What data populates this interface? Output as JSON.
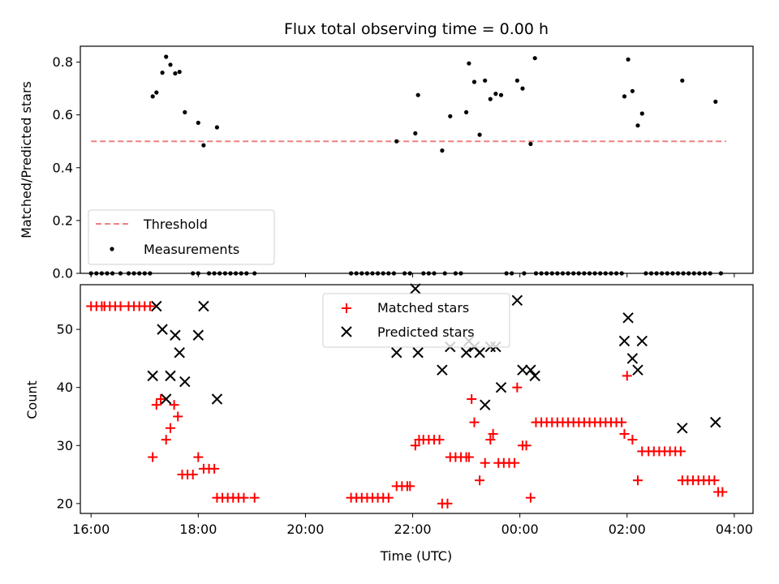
{
  "chart_data": [
    {
      "type": "scatter",
      "title": "Flux total observing time = 0.00 h",
      "xlabel": "",
      "ylabel": "Matched/Predicted stars",
      "xlim": [
        15.8,
        28.35
      ],
      "ylim": [
        0.0,
        0.86
      ],
      "yticks": [
        "0.0",
        "0.2",
        "0.4",
        "0.6",
        "0.8"
      ],
      "legend_position": "lower-left",
      "threshold": {
        "name": "Threshold",
        "y": 0.5,
        "x_range": [
          16.0,
          27.85
        ],
        "color": "#f08080",
        "style": "dashed"
      },
      "series": [
        {
          "name": "Measurements",
          "color": "#000000",
          "points": [
            [
              17.15,
              0.67
            ],
            [
              17.22,
              0.685
            ],
            [
              17.33,
              0.76
            ],
            [
              17.4,
              0.82
            ],
            [
              17.48,
              0.79
            ],
            [
              17.57,
              0.757
            ],
            [
              17.65,
              0.763
            ],
            [
              17.75,
              0.61
            ],
            [
              18.0,
              0.57
            ],
            [
              18.1,
              0.485
            ],
            [
              18.35,
              0.553
            ],
            [
              21.7,
              0.5
            ],
            [
              22.05,
              0.53
            ],
            [
              22.1,
              0.675
            ],
            [
              22.55,
              0.465
            ],
            [
              22.7,
              0.595
            ],
            [
              23.0,
              0.61
            ],
            [
              23.05,
              0.795
            ],
            [
              23.15,
              0.725
            ],
            [
              23.25,
              0.525
            ],
            [
              23.35,
              0.73
            ],
            [
              23.45,
              0.66
            ],
            [
              23.55,
              0.68
            ],
            [
              23.65,
              0.675
            ],
            [
              23.95,
              0.73
            ],
            [
              24.05,
              0.7
            ],
            [
              24.2,
              0.49
            ],
            [
              24.28,
              0.815
            ],
            [
              25.95,
              0.67
            ],
            [
              26.02,
              0.81
            ],
            [
              26.1,
              0.69
            ],
            [
              26.2,
              0.56
            ],
            [
              26.28,
              0.605
            ],
            [
              27.03,
              0.73
            ],
            [
              27.65,
              0.65
            ],
            [
              16.0,
              0
            ],
            [
              16.1,
              0
            ],
            [
              16.2,
              0
            ],
            [
              16.3,
              0
            ],
            [
              16.4,
              0
            ],
            [
              16.55,
              0
            ],
            [
              16.7,
              0
            ],
            [
              16.8,
              0
            ],
            [
              16.9,
              0
            ],
            [
              17.0,
              0
            ],
            [
              17.1,
              0
            ],
            [
              17.9,
              0
            ],
            [
              18.0,
              0
            ],
            [
              18.2,
              0
            ],
            [
              18.3,
              0
            ],
            [
              18.4,
              0
            ],
            [
              18.5,
              0
            ],
            [
              18.6,
              0
            ],
            [
              18.7,
              0
            ],
            [
              18.8,
              0
            ],
            [
              18.9,
              0
            ],
            [
              19.05,
              0
            ],
            [
              20.85,
              0
            ],
            [
              20.95,
              0
            ],
            [
              21.05,
              0
            ],
            [
              21.15,
              0
            ],
            [
              21.25,
              0
            ],
            [
              21.35,
              0
            ],
            [
              21.45,
              0
            ],
            [
              21.55,
              0
            ],
            [
              21.65,
              0
            ],
            [
              21.85,
              0
            ],
            [
              21.95,
              0
            ],
            [
              22.2,
              0
            ],
            [
              22.3,
              0
            ],
            [
              22.4,
              0
            ],
            [
              22.6,
              0
            ],
            [
              22.8,
              0
            ],
            [
              22.9,
              0
            ],
            [
              23.75,
              0
            ],
            [
              23.85,
              0
            ],
            [
              24.08,
              0
            ],
            [
              24.3,
              0
            ],
            [
              24.4,
              0
            ],
            [
              24.5,
              0
            ],
            [
              24.6,
              0
            ],
            [
              24.7,
              0
            ],
            [
              24.8,
              0
            ],
            [
              24.9,
              0
            ],
            [
              25.0,
              0
            ],
            [
              25.1,
              0
            ],
            [
              25.2,
              0
            ],
            [
              25.3,
              0
            ],
            [
              25.4,
              0
            ],
            [
              25.5,
              0
            ],
            [
              25.6,
              0
            ],
            [
              25.7,
              0
            ],
            [
              25.8,
              0
            ],
            [
              25.9,
              0
            ],
            [
              26.35,
              0
            ],
            [
              26.45,
              0
            ],
            [
              26.55,
              0
            ],
            [
              26.65,
              0
            ],
            [
              26.75,
              0
            ],
            [
              26.85,
              0
            ],
            [
              26.95,
              0
            ],
            [
              27.05,
              0
            ],
            [
              27.15,
              0
            ],
            [
              27.25,
              0
            ],
            [
              27.35,
              0
            ],
            [
              27.45,
              0
            ],
            [
              27.55,
              0
            ],
            [
              27.75,
              0
            ]
          ]
        }
      ]
    },
    {
      "type": "scatter",
      "title": "",
      "xlabel": "Time (UTC)",
      "ylabel": "Count",
      "xlim": [
        15.8,
        28.35
      ],
      "ylim": [
        18.3,
        57.7
      ],
      "yticks": [
        "20",
        "30",
        "40",
        "50"
      ],
      "x_tick_labels": [
        "16:00",
        "18:00",
        "20:00",
        "22:00",
        "00:00",
        "02:00",
        "04:00"
      ],
      "legend_position": "upper-center",
      "series": [
        {
          "name": "Matched stars",
          "color": "#ff0000",
          "marker": "plus",
          "points": [
            [
              16.0,
              54
            ],
            [
              16.1,
              54
            ],
            [
              16.2,
              54
            ],
            [
              16.25,
              54
            ],
            [
              16.35,
              54
            ],
            [
              16.45,
              54
            ],
            [
              16.55,
              54
            ],
            [
              16.7,
              54
            ],
            [
              16.8,
              54
            ],
            [
              16.9,
              54
            ],
            [
              17.0,
              54
            ],
            [
              17.1,
              54
            ],
            [
              17.15,
              28
            ],
            [
              17.22,
              37
            ],
            [
              17.3,
              38
            ],
            [
              17.4,
              31
            ],
            [
              17.48,
              33
            ],
            [
              17.55,
              37
            ],
            [
              17.62,
              35
            ],
            [
              17.7,
              25
            ],
            [
              17.8,
              25
            ],
            [
              17.9,
              25
            ],
            [
              18.0,
              28
            ],
            [
              18.1,
              26
            ],
            [
              18.2,
              26
            ],
            [
              18.3,
              26
            ],
            [
              18.35,
              21
            ],
            [
              18.45,
              21
            ],
            [
              18.55,
              21
            ],
            [
              18.65,
              21
            ],
            [
              18.75,
              21
            ],
            [
              18.85,
              21
            ],
            [
              19.05,
              21
            ],
            [
              20.85,
              21
            ],
            [
              20.95,
              21
            ],
            [
              21.05,
              21
            ],
            [
              21.15,
              21
            ],
            [
              21.25,
              21
            ],
            [
              21.35,
              21
            ],
            [
              21.45,
              21
            ],
            [
              21.55,
              21
            ],
            [
              21.7,
              23
            ],
            [
              21.8,
              23
            ],
            [
              21.9,
              23
            ],
            [
              21.95,
              23
            ],
            [
              22.05,
              30
            ],
            [
              22.12,
              31
            ],
            [
              22.2,
              31
            ],
            [
              22.3,
              31
            ],
            [
              22.4,
              31
            ],
            [
              22.5,
              31
            ],
            [
              22.55,
              20
            ],
            [
              22.65,
              20
            ],
            [
              22.7,
              28
            ],
            [
              22.8,
              28
            ],
            [
              22.9,
              28
            ],
            [
              23.0,
              28
            ],
            [
              23.05,
              28
            ],
            [
              23.1,
              38
            ],
            [
              23.15,
              34
            ],
            [
              23.25,
              24
            ],
            [
              23.35,
              27
            ],
            [
              23.45,
              31
            ],
            [
              23.5,
              32
            ],
            [
              23.6,
              27
            ],
            [
              23.7,
              27
            ],
            [
              23.8,
              27
            ],
            [
              23.9,
              27
            ],
            [
              23.95,
              40
            ],
            [
              24.05,
              30
            ],
            [
              24.12,
              30
            ],
            [
              24.2,
              21
            ],
            [
              24.3,
              34
            ],
            [
              24.4,
              34
            ],
            [
              24.5,
              34
            ],
            [
              24.6,
              34
            ],
            [
              24.7,
              34
            ],
            [
              24.8,
              34
            ],
            [
              24.9,
              34
            ],
            [
              25.0,
              34
            ],
            [
              25.1,
              34
            ],
            [
              25.2,
              34
            ],
            [
              25.3,
              34
            ],
            [
              25.4,
              34
            ],
            [
              25.5,
              34
            ],
            [
              25.6,
              34
            ],
            [
              25.7,
              34
            ],
            [
              25.8,
              34
            ],
            [
              25.9,
              34
            ],
            [
              25.95,
              32
            ],
            [
              26.0,
              42
            ],
            [
              26.1,
              31
            ],
            [
              26.2,
              24
            ],
            [
              26.28,
              29
            ],
            [
              26.4,
              29
            ],
            [
              26.5,
              29
            ],
            [
              26.6,
              29
            ],
            [
              26.7,
              29
            ],
            [
              26.8,
              29
            ],
            [
              26.9,
              29
            ],
            [
              27.0,
              29
            ],
            [
              27.03,
              24
            ],
            [
              27.13,
              24
            ],
            [
              27.23,
              24
            ],
            [
              27.33,
              24
            ],
            [
              27.43,
              24
            ],
            [
              27.53,
              24
            ],
            [
              27.63,
              24
            ],
            [
              27.7,
              22
            ],
            [
              27.78,
              22
            ]
          ]
        },
        {
          "name": "Predicted stars",
          "color": "#000000",
          "marker": "x",
          "points": [
            [
              17.15,
              42
            ],
            [
              17.22,
              54
            ],
            [
              17.33,
              50
            ],
            [
              17.4,
              38
            ],
            [
              17.48,
              42
            ],
            [
              17.57,
              49
            ],
            [
              17.65,
              46
            ],
            [
              17.75,
              41
            ],
            [
              18.0,
              49
            ],
            [
              18.1,
              54
            ],
            [
              18.35,
              38
            ],
            [
              21.7,
              46
            ],
            [
              22.05,
              57
            ],
            [
              22.1,
              46
            ],
            [
              22.55,
              43
            ],
            [
              22.7,
              47
            ],
            [
              23.0,
              46
            ],
            [
              23.05,
              48
            ],
            [
              23.15,
              47
            ],
            [
              23.25,
              46
            ],
            [
              23.35,
              37
            ],
            [
              23.45,
              47
            ],
            [
              23.55,
              47
            ],
            [
              23.65,
              40
            ],
            [
              23.95,
              55
            ],
            [
              24.05,
              43
            ],
            [
              24.2,
              43
            ],
            [
              24.28,
              42
            ],
            [
              25.95,
              48
            ],
            [
              26.02,
              52
            ],
            [
              26.1,
              45
            ],
            [
              26.2,
              43
            ],
            [
              26.28,
              48
            ],
            [
              27.03,
              33
            ],
            [
              27.65,
              34
            ]
          ]
        }
      ]
    }
  ]
}
